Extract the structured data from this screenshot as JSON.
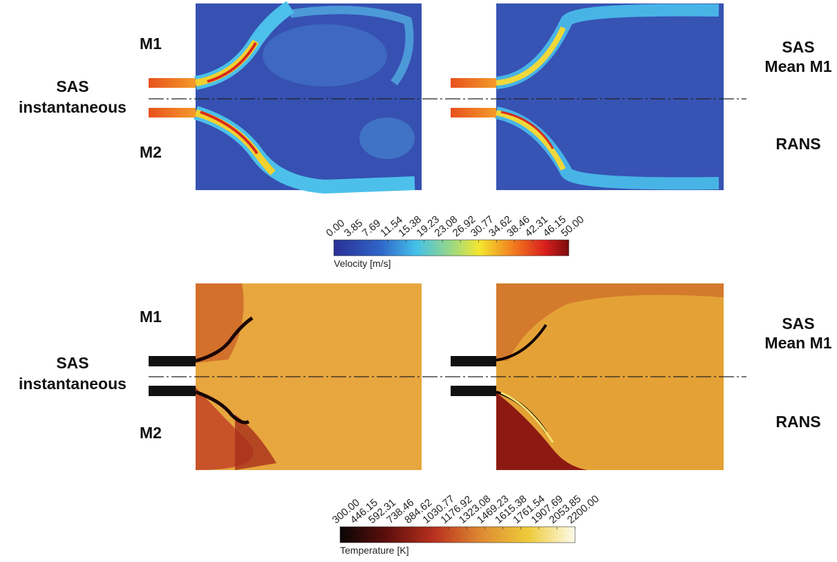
{
  "velocity_panels": {
    "left_labels": {
      "top": "M1",
      "middle": [
        "SAS",
        "instantaneous"
      ],
      "bottom": "M2"
    },
    "right_labels": {
      "top": [
        "SAS",
        "Mean M1"
      ],
      "bottom": "RANS"
    }
  },
  "velocity_colorbar": {
    "title": "Velocity [m/s]",
    "ticks": [
      "0.00",
      "3.85",
      "7.69",
      "11.54",
      "15.38",
      "19.23",
      "23.08",
      "26.92",
      "30.77",
      "34.62",
      "38.46",
      "42.31",
      "46.15",
      "50.00"
    ]
  },
  "temperature_panels": {
    "left_labels": {
      "top": "M1",
      "middle": [
        "SAS",
        "instantaneous"
      ],
      "bottom": "M2"
    },
    "right_labels": {
      "top": [
        "SAS",
        "Mean M1"
      ],
      "bottom": "RANS"
    }
  },
  "temperature_colorbar": {
    "title": "Temperature [K]",
    "ticks": [
      "300.00",
      "446.15",
      "592.31",
      "738.46",
      "884.62",
      "1030.77",
      "1176.92",
      "1323.08",
      "1469.23",
      "1615.38",
      "1761.54",
      "1907.69",
      "2053.85",
      "2200.00"
    ]
  }
}
